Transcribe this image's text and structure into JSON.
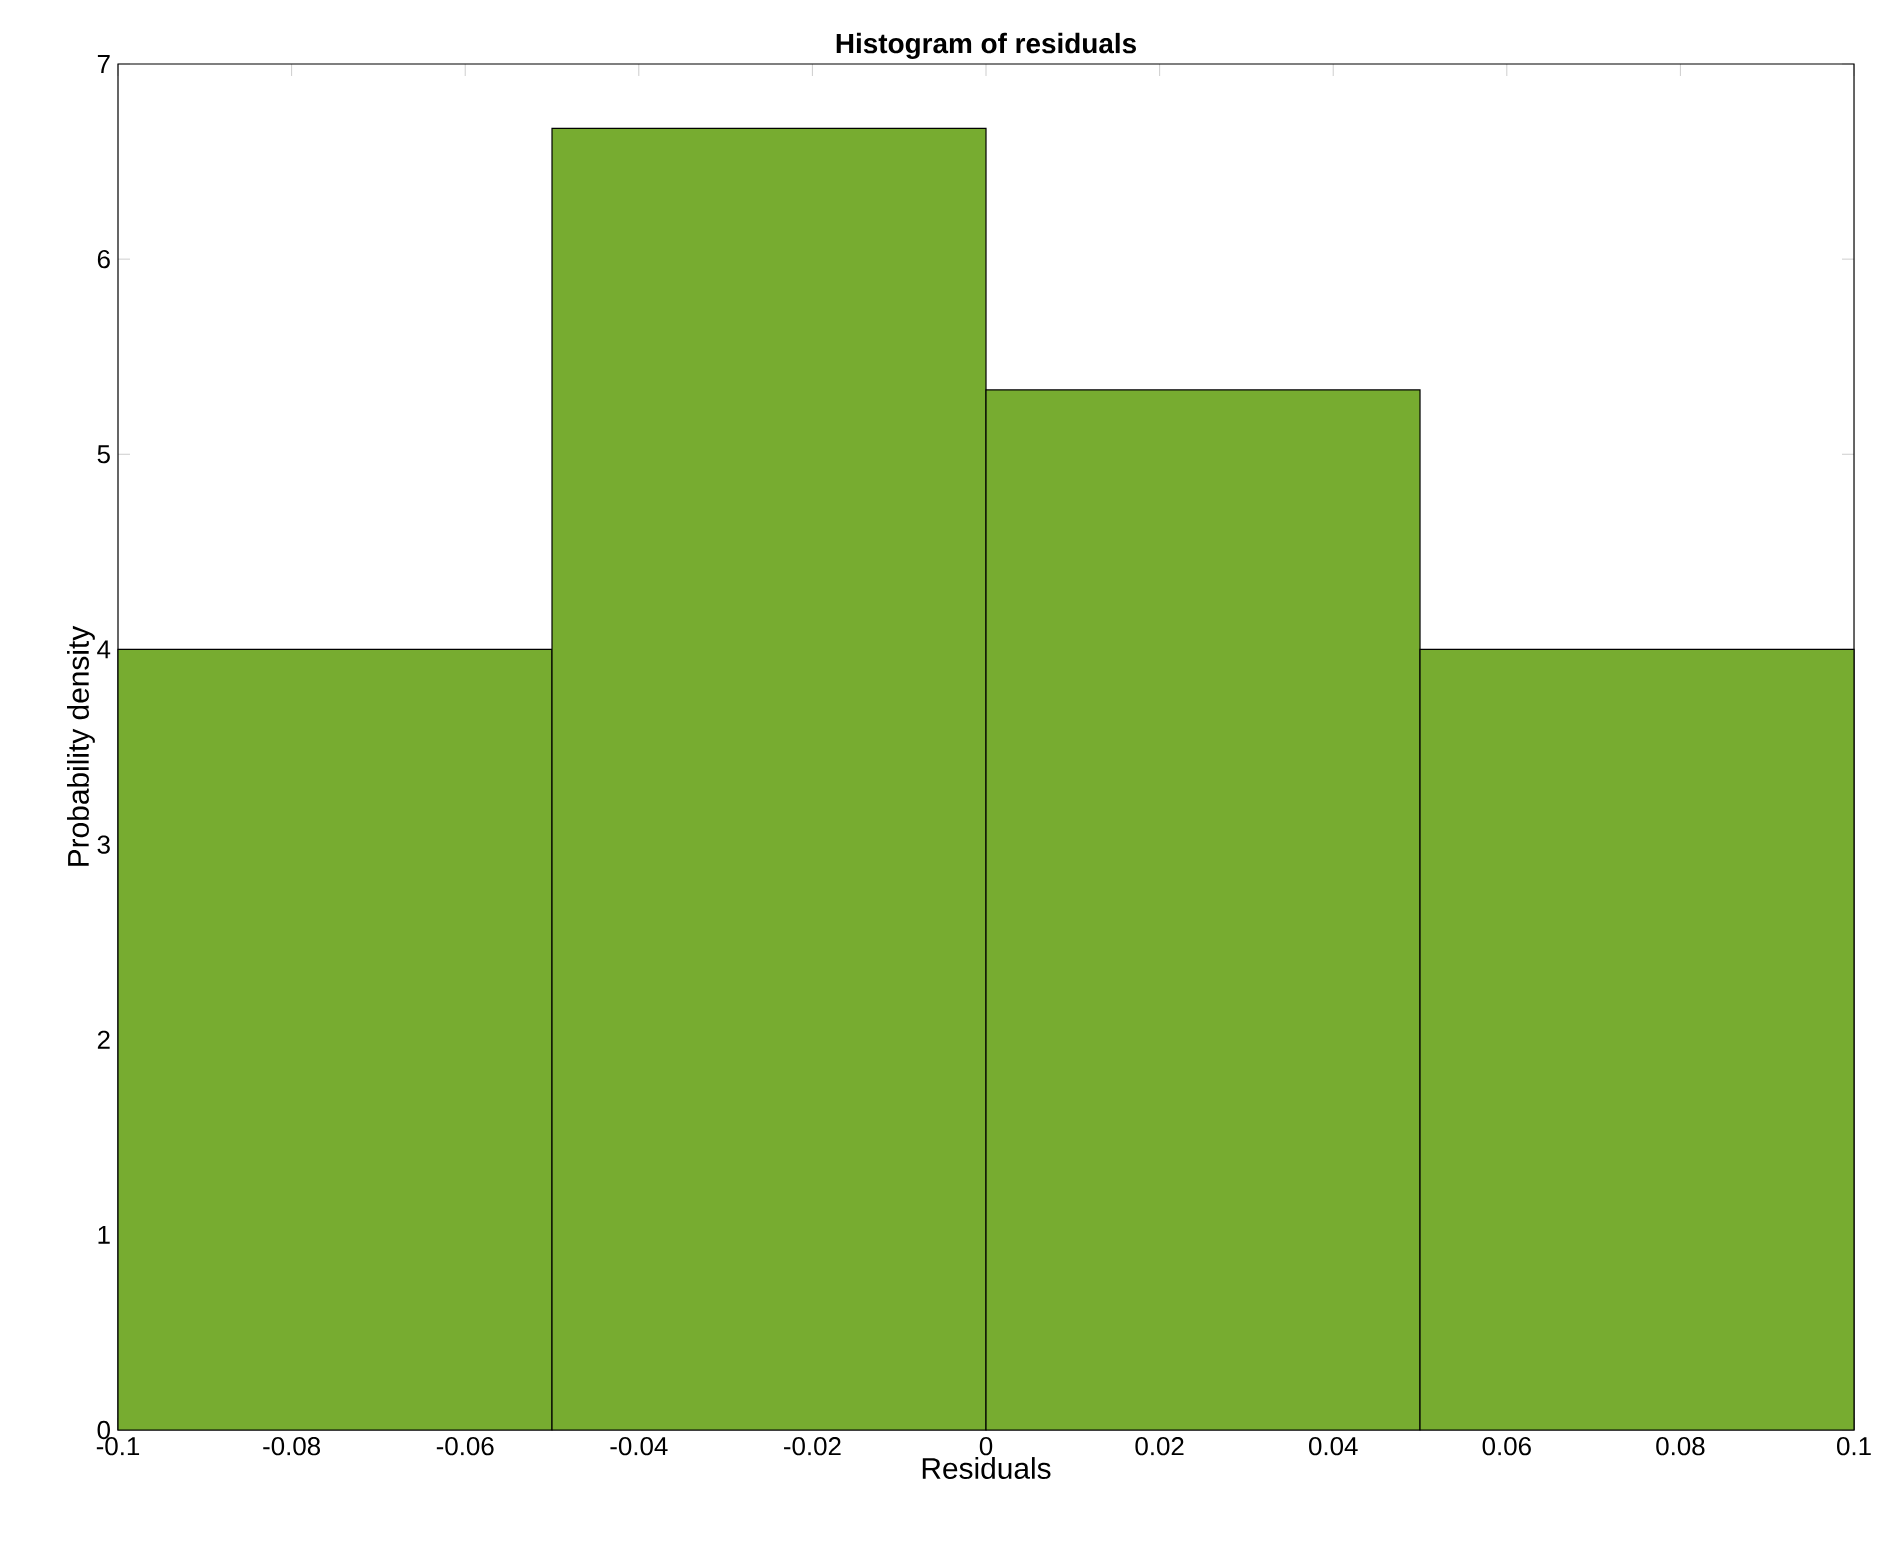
{
  "chart_data": {
    "type": "histogram",
    "title": "Histogram of residuals",
    "xlabel": "Residuals",
    "ylabel": "Probability density",
    "bins": [
      -0.1,
      -0.05,
      0,
      0.05,
      0.1
    ],
    "values": [
      4,
      6.67,
      5.33,
      4
    ],
    "color": "#77ac30",
    "xlim": [
      -0.1,
      0.1
    ],
    "ylim": [
      0,
      7
    ],
    "xticks": [
      -0.1,
      -0.08,
      -0.06,
      -0.04,
      -0.02,
      0,
      0.02,
      0.04,
      0.06,
      0.08,
      0.1
    ],
    "yticks": [
      0,
      1,
      2,
      3,
      4,
      5,
      6,
      7
    ]
  }
}
